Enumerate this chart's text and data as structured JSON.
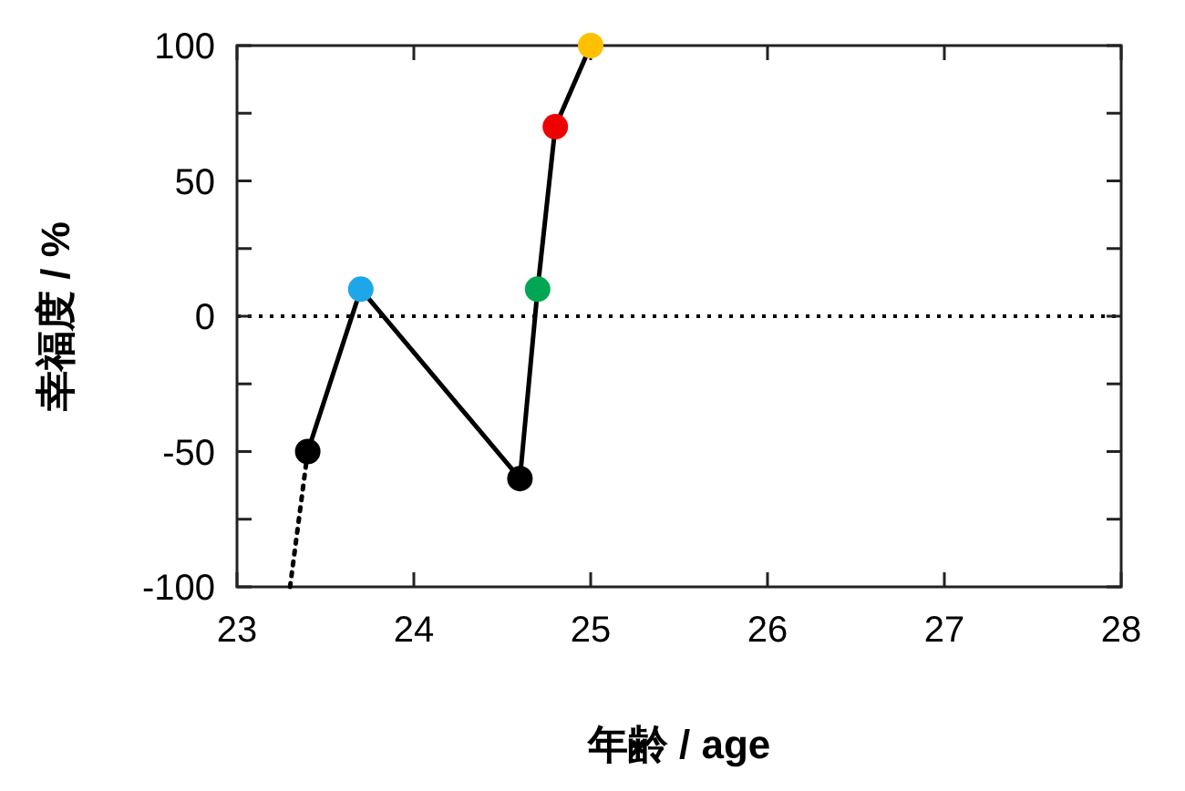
{
  "chart_data": {
    "type": "line",
    "xlabel": "年齢 / age",
    "ylabel": "幸福度 / %",
    "xlim": [
      23,
      28
    ],
    "xticks": [
      23,
      24,
      25,
      26,
      27,
      28
    ],
    "ylim": [
      -100,
      100
    ],
    "yticks": [
      -100,
      {
        "value": -75,
        "label": null
      },
      -50,
      {
        "value": -25,
        "label": null
      },
      0,
      {
        "value": 25,
        "label": null
      },
      50,
      {
        "value": 75,
        "label": null
      },
      100
    ],
    "series": [
      {
        "x": [
          23.4,
          23.7,
          24.6,
          24.7,
          24.8,
          25.0
        ],
        "values": [
          -50,
          10,
          -60,
          10,
          70,
          100
        ],
        "color": "#000000",
        "colors": [
          "#000000",
          "#1ea7e8",
          "#000000",
          "#00a651",
          "#ee0000",
          "#ffc000"
        ],
        "marker": "circle",
        "line_style": "solid"
      },
      {
        "x": [
          23.3,
          23.4
        ],
        "values": [
          -100,
          -50
        ],
        "color": "#000000",
        "marker": "none",
        "line_style": "dotted"
      }
    ],
    "ref_lines": [
      {
        "axis": "y",
        "value": 0,
        "color": "#000000",
        "line_style": "dotted"
      }
    ],
    "grid": false
  }
}
